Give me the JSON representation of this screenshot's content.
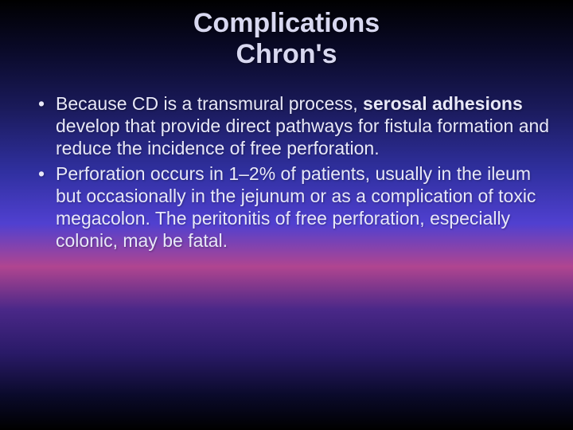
{
  "title_line1": "Complications",
  "title_line2": "Chron's",
  "bullets": [
    {
      "pre": "Because CD is a transmural process, ",
      "bold": "serosal adhesions",
      "post": " develop that provide direct pathways for fistula formation and reduce the incidence of free perforation."
    },
    {
      "pre": "Perforation occurs in 1–2% of patients, usually in the ileum but occasionally in the jejunum or as a complication of toxic megacolon. The peritonitis of free perforation, especially colonic, may be fatal.",
      "bold": "",
      "post": ""
    }
  ],
  "colors": {
    "title_color": "#d8d8f0",
    "body_color": "#e8e8f8"
  },
  "typography": {
    "title_fontsize": 34,
    "body_fontsize": 23,
    "font_family": "Arial"
  }
}
